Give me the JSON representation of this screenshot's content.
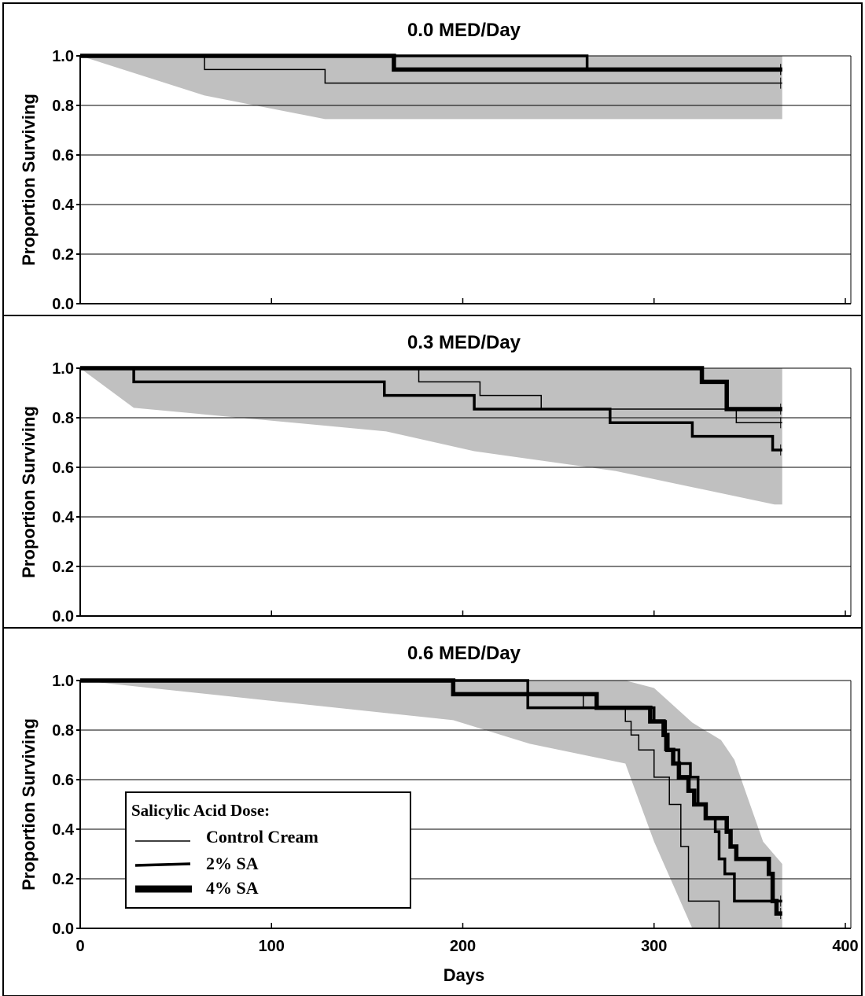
{
  "chart_data": [
    {
      "type": "line",
      "title": "0.0 MED/Day",
      "ylabel": "Proportion Surviving",
      "xlabel": "",
      "xlim": [
        0,
        400
      ],
      "ylim": [
        0,
        1
      ],
      "yticks": [
        "0.0",
        "0.2",
        "0.4",
        "0.6",
        "0.8",
        "1.0"
      ],
      "xticks": [],
      "grid": "horizontal",
      "confidence_band": {
        "x": [
          0,
          65,
          128,
          367
        ],
        "lower": [
          1.0,
          0.84,
          0.745,
          0.745
        ],
        "upper": [
          1.0,
          1.0,
          1.0,
          1.0
        ]
      },
      "series": [
        {
          "name": "Control Cream",
          "x": [
            0,
            65,
            128,
            367
          ],
          "y": [
            1.0,
            0.945,
            0.89,
            0.89
          ]
        },
        {
          "name": "2% SA",
          "x": [
            0,
            265,
            367
          ],
          "y": [
            1.0,
            0.945,
            0.945
          ]
        },
        {
          "name": "4% SA",
          "x": [
            0,
            164,
            367
          ],
          "y": [
            1.0,
            0.945,
            0.945
          ]
        }
      ]
    },
    {
      "type": "line",
      "title": "0.3 MED/Day",
      "ylabel": "Proportion Surviving",
      "xlabel": "",
      "xlim": [
        0,
        400
      ],
      "ylim": [
        0,
        1
      ],
      "yticks": [
        "0.0",
        "0.2",
        "0.4",
        "0.6",
        "0.8",
        "1.0"
      ],
      "xticks": [],
      "grid": "horizontal",
      "confidence_band": {
        "x": [
          0,
          28,
          160,
          206,
          280,
          320,
          363,
          367
        ],
        "lower": [
          1.0,
          0.84,
          0.745,
          0.665,
          0.585,
          0.52,
          0.45,
          0.45
        ],
        "upper": [
          1.0,
          1.0,
          1.0,
          1.0,
          1.0,
          1.0,
          1.0,
          1.0
        ]
      },
      "series": [
        {
          "name": "Control Cream",
          "x": [
            0,
            177,
            209,
            241,
            343,
            367
          ],
          "y": [
            1.0,
            0.945,
            0.89,
            0.835,
            0.78,
            0.78
          ]
        },
        {
          "name": "2% SA",
          "x": [
            0,
            28,
            159,
            206,
            277,
            320,
            362,
            367
          ],
          "y": [
            1.0,
            0.945,
            0.89,
            0.835,
            0.78,
            0.725,
            0.67,
            0.67
          ]
        },
        {
          "name": "4% SA",
          "x": [
            0,
            325,
            338,
            367
          ],
          "y": [
            1.0,
            0.945,
            0.835,
            0.835
          ]
        }
      ]
    },
    {
      "type": "line",
      "title": "0.6 MED/Day",
      "ylabel": "Proportion Surviving",
      "xlabel": "Days",
      "xlim": [
        0,
        400
      ],
      "ylim": [
        0,
        1
      ],
      "yticks": [
        "0.0",
        "0.2",
        "0.4",
        "0.6",
        "0.8",
        "1.0"
      ],
      "xticks": [
        "0",
        "100",
        "200",
        "300",
        "400"
      ],
      "grid": "horizontal",
      "confidence_band": {
        "x": [
          0,
          195,
          235,
          285,
          300,
          320,
          335,
          342,
          357,
          367
        ],
        "lower": [
          1.0,
          0.84,
          0.745,
          0.665,
          0.35,
          0.0,
          0.0,
          0.0,
          0.0,
          0.0
        ],
        "upper": [
          1.0,
          1.0,
          1.0,
          1.0,
          0.97,
          0.83,
          0.76,
          0.68,
          0.35,
          0.26
        ]
      },
      "series": [
        {
          "name": "Control Cream",
          "x": [
            0,
            195,
            263,
            285,
            288,
            292,
            300,
            308,
            314,
            318,
            334
          ],
          "y": [
            1.0,
            0.945,
            0.89,
            0.835,
            0.78,
            0.72,
            0.61,
            0.5,
            0.33,
            0.11,
            0.0
          ]
        },
        {
          "name": "2% SA",
          "x": [
            0,
            234,
            300,
            306,
            313,
            319,
            323,
            327,
            332,
            334,
            337,
            342,
            367
          ],
          "y": [
            1.0,
            0.89,
            0.835,
            0.72,
            0.665,
            0.61,
            0.5,
            0.445,
            0.39,
            0.28,
            0.22,
            0.11,
            0.11
          ]
        },
        {
          "name": "4% SA",
          "x": [
            0,
            195,
            270,
            298,
            305,
            307,
            310,
            313,
            318,
            321,
            327,
            338,
            340,
            343,
            360,
            362,
            363,
            364,
            367
          ],
          "y": [
            1.0,
            0.945,
            0.89,
            0.835,
            0.78,
            0.72,
            0.665,
            0.61,
            0.555,
            0.5,
            0.445,
            0.39,
            0.33,
            0.28,
            0.22,
            0.11,
            0.11,
            0.06,
            0.06
          ]
        }
      ]
    }
  ],
  "legend": {
    "title": "Salicylic Acid Dose:",
    "items": [
      "Control Cream",
      "2% SA",
      "4% SA"
    ],
    "placement": "bottom-left of lower panel"
  },
  "colors": {
    "band": "#c0c0c0",
    "lines": "#000000",
    "grid": "#000000",
    "background": "#ffffff"
  }
}
